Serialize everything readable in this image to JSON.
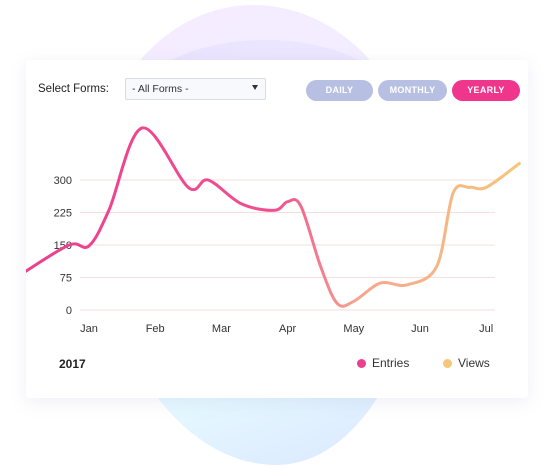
{
  "filters": {
    "select_label": "Select Forms:",
    "select_value": "- All Forms -",
    "periods": [
      {
        "label": "DAILY",
        "active": false
      },
      {
        "label": "MONTHLY",
        "active": false
      },
      {
        "label": "YEARLY",
        "active": true
      }
    ]
  },
  "footer": {
    "year": "2017"
  },
  "legend": [
    {
      "label": "Entries",
      "color": "#ec3f8e"
    },
    {
      "label": "Views",
      "color": "#f6c77a"
    }
  ],
  "colors": {
    "pill_inactive": "#b7bfe3",
    "pill_active": "#f0358c",
    "grid": "#f7dede"
  },
  "chart_data": {
    "type": "line",
    "title": "",
    "xlabel": "",
    "ylabel": "",
    "x_ticks": [
      "Jan",
      "Feb",
      "Mar",
      "Apr",
      "May",
      "Jun",
      "Jul"
    ],
    "y_ticks": [
      0,
      75,
      150,
      225,
      300
    ],
    "ylim": [
      0,
      300
    ],
    "grid": true,
    "legend_placement": "bottom-right",
    "series": [
      {
        "name": "Entries",
        "points": [
          [
            -1.0,
            85
          ],
          [
            -0.3,
            150
          ],
          [
            0.0,
            148
          ],
          [
            0.3,
            230
          ],
          [
            0.8,
            420
          ],
          [
            1.5,
            283
          ],
          [
            1.8,
            300
          ],
          [
            2.3,
            245
          ],
          [
            2.8,
            230
          ],
          [
            3.0,
            250
          ],
          [
            3.2,
            240
          ],
          [
            3.5,
            100
          ],
          [
            3.75,
            15
          ],
          [
            4.0,
            20
          ],
          [
            4.4,
            62
          ],
          [
            4.8,
            58
          ],
          [
            5.25,
            100
          ],
          [
            5.5,
            270
          ],
          [
            5.75,
            283
          ],
          [
            6.0,
            283
          ],
          [
            6.5,
            338
          ]
        ]
      }
    ]
  }
}
